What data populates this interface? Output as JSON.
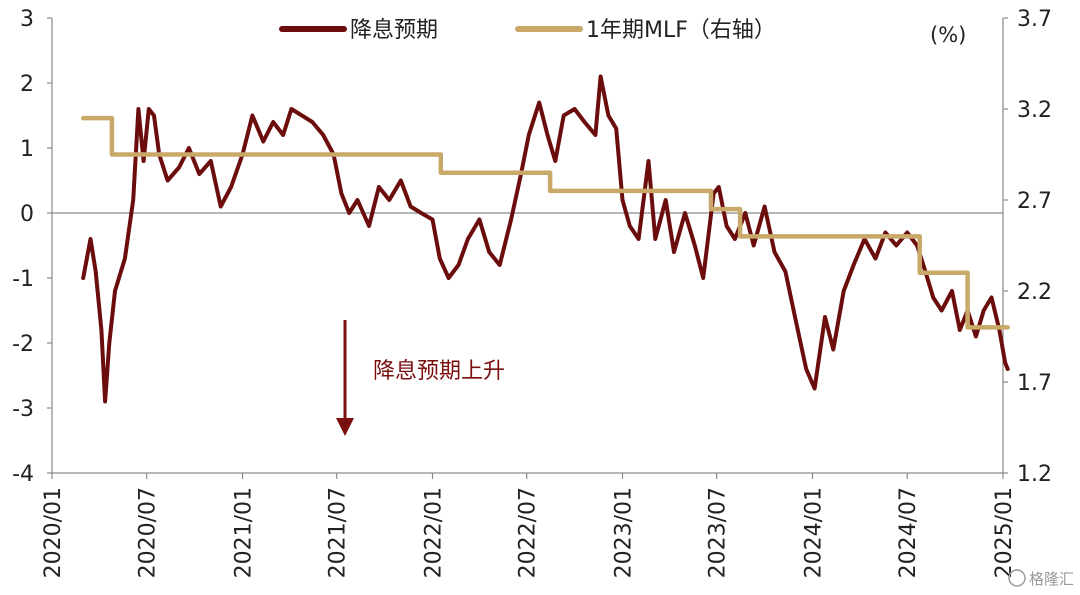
{
  "chart_data": {
    "type": "line",
    "unit_label": "(%)",
    "annotation": "降息预期上升",
    "watermark": "格隆汇",
    "x_labels": [
      "2020/01",
      "2020/07",
      "2021/01",
      "2021/07",
      "2022/01",
      "2022/07",
      "2023/01",
      "2023/07",
      "2024/01",
      "2024/07",
      "2025/01"
    ],
    "left_axis": {
      "ylim": [
        -4,
        3
      ],
      "ticks": [
        -4,
        -3,
        -2,
        -1,
        0,
        1,
        2,
        3
      ],
      "tick_labels": [
        "-4",
        "-3",
        "-2",
        "-1",
        "0",
        "1",
        "2",
        "3"
      ]
    },
    "right_axis": {
      "ylim": [
        1.2,
        3.7
      ],
      "ticks": [
        1.2,
        1.7,
        2.2,
        2.7,
        3.2,
        3.7
      ],
      "tick_labels": [
        "1.2",
        "1.7",
        "2.2",
        "2.7",
        "3.2",
        "3.7"
      ]
    },
    "grid": false,
    "legend_position": "top",
    "series": [
      {
        "name": "降息预期",
        "axis": "left",
        "color": "#6b0d0d",
        "points": [
          [
            "2020/03/01",
            -1.0
          ],
          [
            "2020/03/15",
            -0.4
          ],
          [
            "2020/03/25",
            -0.9
          ],
          [
            "2020/04/05",
            -1.8
          ],
          [
            "2020/04/12",
            -2.9
          ],
          [
            "2020/04/20",
            -2.0
          ],
          [
            "2020/05/01",
            -1.2
          ],
          [
            "2020/05/20",
            -0.7
          ],
          [
            "2020/06/05",
            0.2
          ],
          [
            "2020/06/15",
            1.6
          ],
          [
            "2020/06/25",
            0.8
          ],
          [
            "2020/07/05",
            1.6
          ],
          [
            "2020/07/15",
            1.5
          ],
          [
            "2020/07/25",
            0.9
          ],
          [
            "2020/08/10",
            0.5
          ],
          [
            "2020/09/01",
            0.7
          ],
          [
            "2020/09/20",
            1.0
          ],
          [
            "2020/10/10",
            0.6
          ],
          [
            "2020/11/01",
            0.8
          ],
          [
            "2020/11/20",
            0.1
          ],
          [
            "2020/12/10",
            0.4
          ],
          [
            "2021/01/01",
            0.9
          ],
          [
            "2021/01/20",
            1.5
          ],
          [
            "2021/02/10",
            1.1
          ],
          [
            "2021/03/01",
            1.4
          ],
          [
            "2021/03/20",
            1.2
          ],
          [
            "2021/04/05",
            1.6
          ],
          [
            "2021/04/25",
            1.5
          ],
          [
            "2021/05/15",
            1.4
          ],
          [
            "2021/06/05",
            1.2
          ],
          [
            "2021/06/25",
            0.9
          ],
          [
            "2021/07/10",
            0.3
          ],
          [
            "2021/07/25",
            0.0
          ],
          [
            "2021/08/10",
            0.2
          ],
          [
            "2021/09/01",
            -0.2
          ],
          [
            "2021/09/20",
            0.4
          ],
          [
            "2021/10/10",
            0.2
          ],
          [
            "2021/11/01",
            0.5
          ],
          [
            "2021/11/20",
            0.1
          ],
          [
            "2021/12/10",
            0.0
          ],
          [
            "2022/01/01",
            -0.1
          ],
          [
            "2022/01/15",
            -0.7
          ],
          [
            "2022/02/01",
            -1.0
          ],
          [
            "2022/02/20",
            -0.8
          ],
          [
            "2022/03/10",
            -0.4
          ],
          [
            "2022/04/01",
            -0.1
          ],
          [
            "2022/04/20",
            -0.6
          ],
          [
            "2022/05/10",
            -0.8
          ],
          [
            "2022/06/01",
            -0.1
          ],
          [
            "2022/06/20",
            0.6
          ],
          [
            "2022/07/05",
            1.2
          ],
          [
            "2022/07/25",
            1.7
          ],
          [
            "2022/08/10",
            1.2
          ],
          [
            "2022/08/25",
            0.8
          ],
          [
            "2022/09/10",
            1.5
          ],
          [
            "2022/10/01",
            1.6
          ],
          [
            "2022/10/20",
            1.4
          ],
          [
            "2022/11/10",
            1.2
          ],
          [
            "2022/11/20",
            2.1
          ],
          [
            "2022/12/05",
            1.5
          ],
          [
            "2022/12/20",
            1.3
          ],
          [
            "2023/01/01",
            0.2
          ],
          [
            "2023/01/15",
            -0.2
          ],
          [
            "2023/02/01",
            -0.4
          ],
          [
            "2023/02/20",
            0.8
          ],
          [
            "2023/03/05",
            -0.4
          ],
          [
            "2023/03/25",
            0.2
          ],
          [
            "2023/04/10",
            -0.6
          ],
          [
            "2023/05/01",
            0.0
          ],
          [
            "2023/05/20",
            -0.5
          ],
          [
            "2023/06/05",
            -1.0
          ],
          [
            "2023/06/25",
            0.3
          ],
          [
            "2023/07/05",
            0.4
          ],
          [
            "2023/07/20",
            -0.2
          ],
          [
            "2023/08/05",
            -0.4
          ],
          [
            "2023/08/25",
            0.0
          ],
          [
            "2023/09/10",
            -0.5
          ],
          [
            "2023/10/01",
            0.1
          ],
          [
            "2023/10/20",
            -0.6
          ],
          [
            "2023/11/10",
            -0.9
          ],
          [
            "2023/12/01",
            -1.7
          ],
          [
            "2023/12/20",
            -2.4
          ],
          [
            "2024/01/05",
            -2.7
          ],
          [
            "2024/01/25",
            -1.6
          ],
          [
            "2024/02/10",
            -2.1
          ],
          [
            "2024/03/01",
            -1.2
          ],
          [
            "2024/03/20",
            -0.8
          ],
          [
            "2024/04/10",
            -0.4
          ],
          [
            "2024/05/01",
            -0.7
          ],
          [
            "2024/05/20",
            -0.3
          ],
          [
            "2024/06/10",
            -0.5
          ],
          [
            "2024/07/01",
            -0.3
          ],
          [
            "2024/07/20",
            -0.5
          ],
          [
            "2024/08/05",
            -0.9
          ],
          [
            "2024/08/20",
            -1.3
          ],
          [
            "2024/09/05",
            -1.5
          ],
          [
            "2024/09/25",
            -1.2
          ],
          [
            "2024/10/10",
            -1.8
          ],
          [
            "2024/10/25",
            -1.5
          ],
          [
            "2024/11/10",
            -1.9
          ],
          [
            "2024/11/25",
            -1.5
          ],
          [
            "2024/12/10",
            -1.3
          ],
          [
            "2024/12/25",
            -1.8
          ],
          [
            "2025/01/05",
            -2.3
          ],
          [
            "2025/01/10",
            -2.4
          ]
        ]
      },
      {
        "name": "1年期MLF（右轴）",
        "axis": "right",
        "color": "#c8a96a",
        "points": [
          [
            "2020/03/01",
            3.15
          ],
          [
            "2020/04/01",
            3.15
          ],
          [
            "2020/04/25",
            2.95
          ],
          [
            "2021/01/01",
            2.95
          ],
          [
            "2021/07/01",
            2.95
          ],
          [
            "2022/01/01",
            2.95
          ],
          [
            "2022/01/17",
            2.85
          ],
          [
            "2022/07/01",
            2.85
          ],
          [
            "2022/08/15",
            2.75
          ],
          [
            "2023/01/01",
            2.75
          ],
          [
            "2023/06/01",
            2.75
          ],
          [
            "2023/06/20",
            2.65
          ],
          [
            "2023/08/15",
            2.5
          ],
          [
            "2024/01/01",
            2.5
          ],
          [
            "2024/07/01",
            2.5
          ],
          [
            "2024/07/25",
            2.3
          ],
          [
            "2024/09/25",
            2.3
          ],
          [
            "2024/10/25",
            2.0
          ],
          [
            "2025/01/10",
            2.0
          ]
        ]
      }
    ]
  }
}
